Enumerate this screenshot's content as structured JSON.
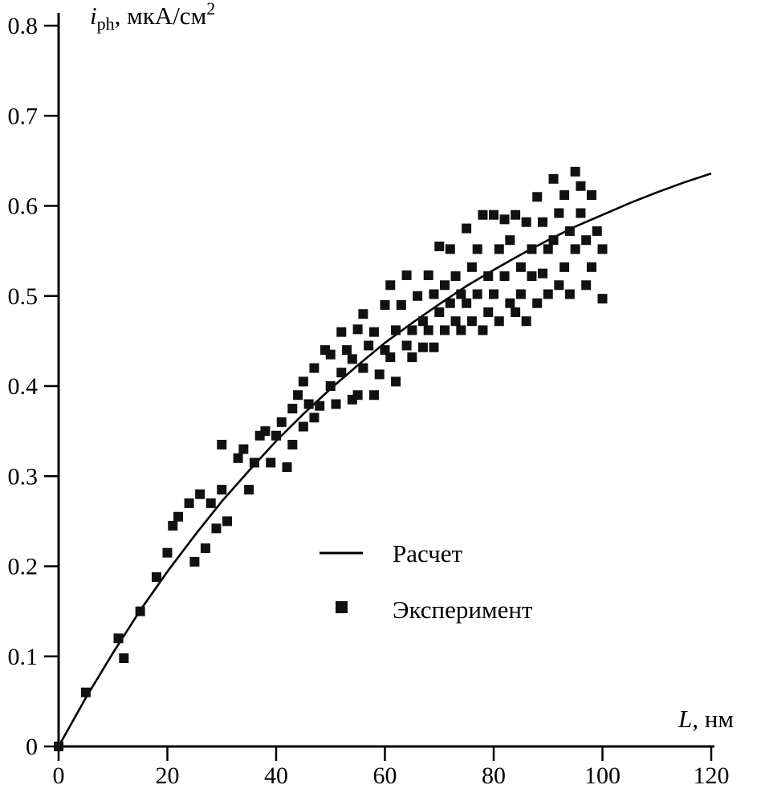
{
  "chart_data": {
    "type": "scatter",
    "title": "",
    "xlabel": "L, нм",
    "ylabel": "i_ph, мкА/см2",
    "xlabel_rich": {
      "var": "L",
      "rest": ", нм"
    },
    "ylabel_rich": {
      "var": "i",
      "sub": "ph",
      "rest": ", мкА/см",
      "sup": "2"
    },
    "xlim": [
      0,
      120
    ],
    "ylim": [
      0,
      0.8
    ],
    "grid": false,
    "x_ticks": [
      "0",
      "20",
      "40",
      "60",
      "80",
      "100",
      "120"
    ],
    "y_ticks": [
      "0",
      "0.1",
      "0.2",
      "0.3",
      "0.4",
      "0.5",
      "0.6",
      "0.7",
      "0.8"
    ],
    "legend": {
      "position": "inside lower-center",
      "items": [
        {
          "label": "Расчет",
          "type": "line"
        },
        {
          "label": "Эксперимент",
          "type": "square"
        }
      ]
    },
    "colors": {
      "curve": "#000000",
      "marker": "#111111",
      "axis": "#000000"
    },
    "series": [
      {
        "name": "Расчет",
        "type": "line",
        "x": [
          0,
          5,
          10,
          15,
          20,
          25,
          30,
          35,
          40,
          45,
          50,
          55,
          60,
          65,
          70,
          75,
          80,
          85,
          90,
          95,
          100,
          105,
          110,
          115,
          120
        ],
        "y": [
          0,
          0.054,
          0.104,
          0.151,
          0.194,
          0.234,
          0.272,
          0.306,
          0.339,
          0.369,
          0.397,
          0.423,
          0.448,
          0.47,
          0.491,
          0.511,
          0.529,
          0.546,
          0.562,
          0.577,
          0.59,
          0.603,
          0.615,
          0.626,
          0.636
        ]
      },
      {
        "name": "Эксперимент",
        "type": "scatter",
        "points": [
          [
            0,
            0.0
          ],
          [
            5,
            0.06
          ],
          [
            11,
            0.12
          ],
          [
            12,
            0.098
          ],
          [
            15,
            0.15
          ],
          [
            18,
            0.188
          ],
          [
            20,
            0.215
          ],
          [
            21,
            0.245
          ],
          [
            22,
            0.255
          ],
          [
            24,
            0.27
          ],
          [
            25,
            0.205
          ],
          [
            26,
            0.28
          ],
          [
            27,
            0.22
          ],
          [
            28,
            0.27
          ],
          [
            29,
            0.242
          ],
          [
            30,
            0.335
          ],
          [
            30,
            0.285
          ],
          [
            31,
            0.25
          ],
          [
            33,
            0.32
          ],
          [
            34,
            0.33
          ],
          [
            35,
            0.285
          ],
          [
            36,
            0.315
          ],
          [
            37,
            0.345
          ],
          [
            38,
            0.35
          ],
          [
            39,
            0.315
          ],
          [
            40,
            0.345
          ],
          [
            41,
            0.36
          ],
          [
            42,
            0.31
          ],
          [
            43,
            0.375
          ],
          [
            43,
            0.335
          ],
          [
            44,
            0.39
          ],
          [
            45,
            0.355
          ],
          [
            45,
            0.405
          ],
          [
            46,
            0.38
          ],
          [
            47,
            0.365
          ],
          [
            47,
            0.42
          ],
          [
            48,
            0.378
          ],
          [
            49,
            0.44
          ],
          [
            50,
            0.4
          ],
          [
            50,
            0.435
          ],
          [
            51,
            0.38
          ],
          [
            52,
            0.46
          ],
          [
            52,
            0.415
          ],
          [
            53,
            0.44
          ],
          [
            54,
            0.385
          ],
          [
            54,
            0.43
          ],
          [
            55,
            0.463
          ],
          [
            55,
            0.39
          ],
          [
            56,
            0.42
          ],
          [
            56,
            0.48
          ],
          [
            57,
            0.445
          ],
          [
            58,
            0.39
          ],
          [
            58,
            0.46
          ],
          [
            59,
            0.413
          ],
          [
            60,
            0.44
          ],
          [
            60,
            0.49
          ],
          [
            61,
            0.512
          ],
          [
            61,
            0.432
          ],
          [
            62,
            0.462
          ],
          [
            62,
            0.405
          ],
          [
            63,
            0.49
          ],
          [
            64,
            0.445
          ],
          [
            64,
            0.523
          ],
          [
            65,
            0.462
          ],
          [
            65,
            0.432
          ],
          [
            66,
            0.5
          ],
          [
            67,
            0.443
          ],
          [
            67,
            0.472
          ],
          [
            68,
            0.523
          ],
          [
            68,
            0.462
          ],
          [
            69,
            0.502
          ],
          [
            69,
            0.443
          ],
          [
            70,
            0.555
          ],
          [
            70,
            0.482
          ],
          [
            71,
            0.512
          ],
          [
            71,
            0.462
          ],
          [
            72,
            0.492
          ],
          [
            72,
            0.552
          ],
          [
            73,
            0.472
          ],
          [
            73,
            0.522
          ],
          [
            74,
            0.502
          ],
          [
            74,
            0.462
          ],
          [
            75,
            0.575
          ],
          [
            75,
            0.492
          ],
          [
            76,
            0.532
          ],
          [
            76,
            0.472
          ],
          [
            77,
            0.552
          ],
          [
            77,
            0.502
          ],
          [
            78,
            0.59
          ],
          [
            78,
            0.462
          ],
          [
            79,
            0.522
          ],
          [
            79,
            0.482
          ],
          [
            80,
            0.59
          ],
          [
            80,
            0.502
          ],
          [
            81,
            0.552
          ],
          [
            81,
            0.472
          ],
          [
            82,
            0.585
          ],
          [
            82,
            0.522
          ],
          [
            83,
            0.492
          ],
          [
            83,
            0.562
          ],
          [
            84,
            0.59
          ],
          [
            84,
            0.482
          ],
          [
            85,
            0.532
          ],
          [
            85,
            0.502
          ],
          [
            86,
            0.582
          ],
          [
            86,
            0.472
          ],
          [
            87,
            0.522
          ],
          [
            87,
            0.552
          ],
          [
            88,
            0.61
          ],
          [
            88,
            0.492
          ],
          [
            89,
            0.582
          ],
          [
            89,
            0.525
          ],
          [
            90,
            0.552
          ],
          [
            90,
            0.502
          ],
          [
            91,
            0.63
          ],
          [
            91,
            0.562
          ],
          [
            92,
            0.592
          ],
          [
            92,
            0.512
          ],
          [
            93,
            0.612
          ],
          [
            93,
            0.532
          ],
          [
            94,
            0.572
          ],
          [
            94,
            0.502
          ],
          [
            95,
            0.638
          ],
          [
            95,
            0.552
          ],
          [
            96,
            0.622
          ],
          [
            96,
            0.592
          ],
          [
            97,
            0.562
          ],
          [
            97,
            0.512
          ],
          [
            98,
            0.612
          ],
          [
            98,
            0.532
          ],
          [
            99,
            0.572
          ],
          [
            100,
            0.552
          ],
          [
            100,
            0.497
          ]
        ]
      }
    ]
  }
}
